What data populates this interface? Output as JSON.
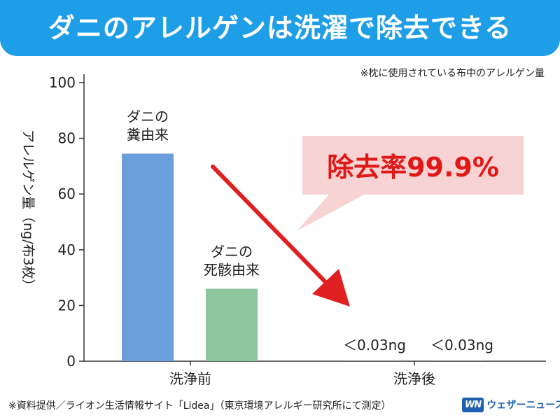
{
  "header": {
    "title": "ダニのアレルゲンは洗濯で除去できる"
  },
  "note": "※枕に使用されている布中のアレルゲン量",
  "footer": {
    "source": "※資料提供／ライオン生活情報サイト「Lidea」（東京環境アレルギー研究所にて測定）",
    "logo_mark": "WN",
    "logo_text": "ウェザーニュース"
  },
  "colors": {
    "header_bg": "#1e9ee6",
    "bar_feces": "#6a9fdc",
    "bar_dead": "#8cc59e",
    "arrow": "#e02020",
    "callout_bg": "#f7d3d3",
    "callout_text": "#e01818"
  },
  "callout": {
    "text": "除去率99.9%"
  },
  "chart_data": {
    "type": "bar",
    "ylabel": "アレルゲン量（ng/布3枚）",
    "ylim": [
      0,
      100
    ],
    "yticks": [
      0,
      20,
      40,
      60,
      80,
      100
    ],
    "categories": [
      "洗浄前",
      "洗浄後"
    ],
    "series": [
      {
        "name": "ダニの\n糞由来",
        "values": [
          74.5,
          0.03
        ],
        "value_labels": [
          "",
          "＜0.03ng"
        ]
      },
      {
        "name": "ダニの\n死骸由来",
        "values": [
          26,
          0.03
        ],
        "value_labels": [
          "",
          "＜0.03ng"
        ]
      }
    ],
    "grid": false
  }
}
